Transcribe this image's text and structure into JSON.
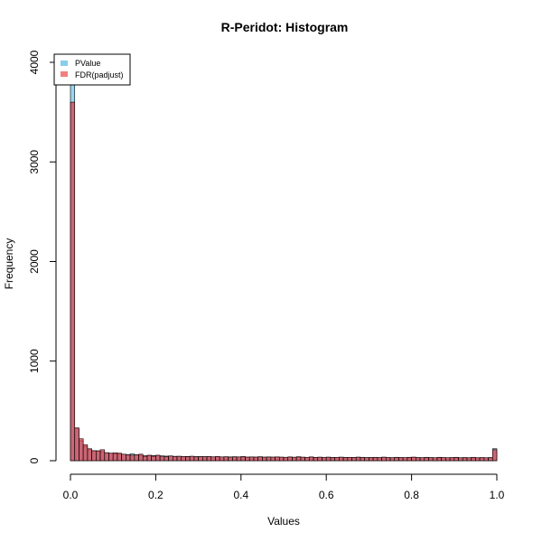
{
  "chart_data": {
    "type": "bar",
    "title": "R-Peridot: Histogram",
    "xlabel": "Values",
    "ylabel": "Frequency",
    "xlim": [
      0,
      1
    ],
    "ylim": [
      0,
      4000
    ],
    "x_ticks": [
      0.0,
      0.2,
      0.4,
      0.6,
      0.8,
      1.0
    ],
    "x_tick_labels": [
      "0.0",
      "0.2",
      "0.4",
      "0.6",
      "0.8",
      "1.0"
    ],
    "y_ticks": [
      0,
      1000,
      2000,
      3000,
      4000
    ],
    "y_tick_labels": [
      "0",
      "1000",
      "2000",
      "3000",
      "4000"
    ],
    "bin_width": 0.01,
    "bin_starts": [
      0.0,
      0.01,
      0.02,
      0.03,
      0.04,
      0.05,
      0.06,
      0.07,
      0.08,
      0.09,
      0.1,
      0.11,
      0.12,
      0.13,
      0.14,
      0.15,
      0.16,
      0.17,
      0.18,
      0.19,
      0.2,
      0.21,
      0.22,
      0.23,
      0.24,
      0.25,
      0.26,
      0.27,
      0.28,
      0.29,
      0.3,
      0.31,
      0.32,
      0.33,
      0.34,
      0.35,
      0.36,
      0.37,
      0.38,
      0.39,
      0.4,
      0.41,
      0.42,
      0.43,
      0.44,
      0.45,
      0.46,
      0.47,
      0.48,
      0.49,
      0.5,
      0.51,
      0.52,
      0.53,
      0.54,
      0.55,
      0.56,
      0.57,
      0.58,
      0.59,
      0.6,
      0.61,
      0.62,
      0.63,
      0.64,
      0.65,
      0.66,
      0.67,
      0.68,
      0.69,
      0.7,
      0.71,
      0.72,
      0.73,
      0.74,
      0.75,
      0.76,
      0.77,
      0.78,
      0.79,
      0.8,
      0.81,
      0.82,
      0.83,
      0.84,
      0.85,
      0.86,
      0.87,
      0.88,
      0.89,
      0.9,
      0.91,
      0.92,
      0.93,
      0.94,
      0.95,
      0.96,
      0.97,
      0.98,
      0.99
    ],
    "legend_position": "top-left",
    "series": [
      {
        "name": "PValue",
        "color": "#87CEEB",
        "values": [
          4000,
          320,
          200,
          140,
          110,
          100,
          95,
          90,
          80,
          75,
          70,
          68,
          65,
          62,
          68,
          60,
          55,
          50,
          48,
          52,
          50,
          48,
          46,
          45,
          44,
          44,
          43,
          42,
          42,
          41,
          40,
          40,
          40,
          39,
          39,
          38,
          38,
          38,
          37,
          37,
          37,
          36,
          36,
          36,
          36,
          35,
          35,
          35,
          35,
          34,
          34,
          34,
          34,
          34,
          33,
          33,
          33,
          33,
          33,
          33,
          32,
          32,
          32,
          32,
          32,
          32,
          32,
          31,
          31,
          31,
          31,
          31,
          31,
          31,
          30,
          30,
          30,
          30,
          30,
          30,
          30,
          30,
          30,
          29,
          29,
          29,
          29,
          29,
          29,
          29,
          29,
          28,
          28,
          28,
          28,
          28,
          28,
          28,
          28,
          120
        ]
      },
      {
        "name": "FDR(padjust)",
        "color": "#F08080",
        "values": [
          3600,
          330,
          220,
          160,
          120,
          100,
          100,
          110,
          80,
          75,
          80,
          75,
          65,
          60,
          55,
          60,
          65,
          45,
          55,
          45,
          55,
          45,
          40,
          48,
          42,
          44,
          42,
          40,
          45,
          38,
          42,
          40,
          42,
          38,
          42,
          38,
          40,
          36,
          40,
          38,
          42,
          36,
          38,
          36,
          40,
          36,
          38,
          36,
          38,
          36,
          34,
          38,
          35,
          40,
          36,
          34,
          38,
          32,
          36,
          34,
          36,
          32,
          34,
          36,
          30,
          34,
          32,
          36,
          34,
          30,
          32,
          34,
          30,
          36,
          32,
          30,
          34,
          32,
          30,
          34,
          36,
          32,
          30,
          34,
          32,
          30,
          34,
          32,
          30,
          32,
          34,
          30,
          32,
          30,
          34,
          30,
          32,
          30,
          32,
          110
        ]
      }
    ]
  }
}
